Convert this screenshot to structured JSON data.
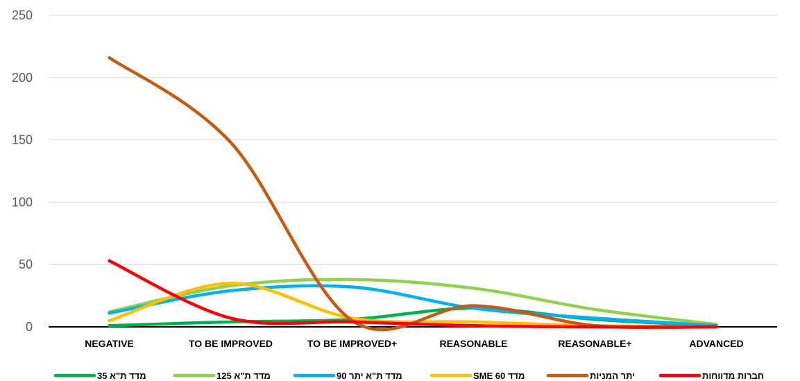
{
  "chart_data": {
    "type": "line",
    "title": "",
    "xlabel": "",
    "ylabel": "",
    "ylim": [
      0,
      250
    ],
    "yticks": [
      0,
      50,
      100,
      150,
      200,
      250
    ],
    "grid": true,
    "legend": "bottom",
    "categories": [
      "NEGATIVE",
      "TO BE IMPROVED",
      "TO BE IMPROVED+",
      "REASONABLE",
      "REASONABLE+",
      "ADVANCED"
    ],
    "series": [
      {
        "name": "מדד ת\"א 35",
        "color": "#00B050",
        "values": [
          1,
          4,
          6,
          15,
          6,
          1
        ]
      },
      {
        "name": "מדד ת\"א 125",
        "color": "#92D050",
        "values": [
          12,
          33,
          38,
          31,
          14,
          2
        ]
      },
      {
        "name": "מדד ת\"א יתר 90",
        "color": "#00B0F0",
        "values": [
          11,
          29,
          32,
          15,
          7,
          1
        ]
      },
      {
        "name": "מדד SME 60",
        "color": "#FFC000",
        "values": [
          5,
          35,
          7,
          4,
          1,
          0
        ]
      },
      {
        "name": "יתר המניות",
        "color": "#C55A11",
        "values": [
          216,
          148,
          5,
          17,
          1,
          0
        ]
      },
      {
        "name": "חברות מדווחות",
        "color": "#FF0000",
        "values": [
          53,
          7,
          4,
          1,
          0,
          0
        ]
      }
    ]
  }
}
